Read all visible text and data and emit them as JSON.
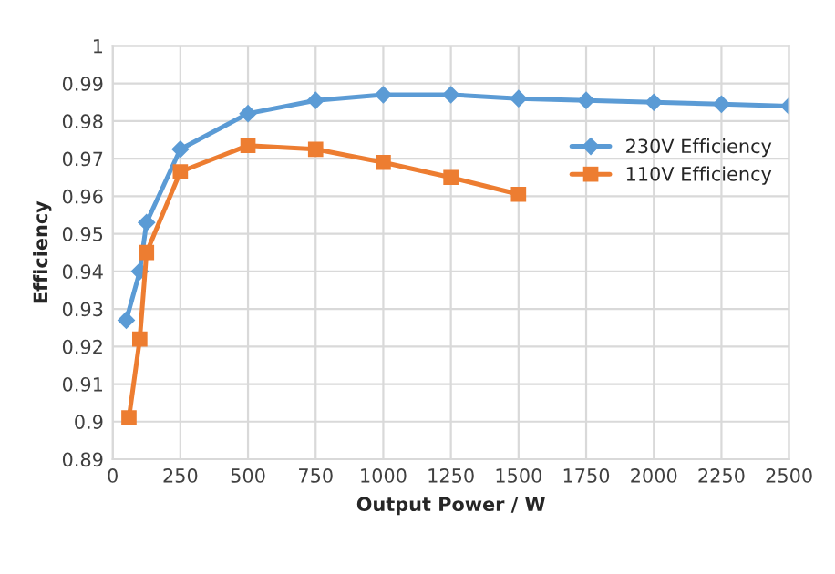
{
  "chart_data": {
    "type": "line",
    "xlabel": "Output Power / W",
    "ylabel": "Efficiency",
    "series": [
      {
        "name": "230V Efficiency",
        "color": "#5b9bd5",
        "marker": "diamond",
        "x": [
          50,
          100,
          125,
          250,
          500,
          750,
          1000,
          1250,
          1500,
          1750,
          2000,
          2250,
          2500
        ],
        "values": [
          0.927,
          0.94,
          0.953,
          0.9725,
          0.982,
          0.9855,
          0.987,
          0.987,
          0.986,
          0.9855,
          0.985,
          0.9845,
          0.984
        ]
      },
      {
        "name": "110V Efficiency",
        "color": "#ed7d31",
        "marker": "square",
        "x": [
          60,
          100,
          125,
          250,
          500,
          750,
          1000,
          1250,
          1500
        ],
        "values": [
          0.901,
          0.922,
          0.945,
          0.9665,
          0.9735,
          0.9725,
          0.969,
          0.965,
          0.9605
        ]
      }
    ],
    "xlim": [
      0,
      2500
    ],
    "xticks": [
      0,
      250,
      500,
      750,
      1000,
      1250,
      1500,
      1750,
      2000,
      2250,
      2500
    ],
    "ylim": [
      0.89,
      1
    ],
    "yticks": [
      0.89,
      0.9,
      0.91,
      0.92,
      0.93,
      0.94,
      0.95,
      0.96,
      0.97,
      0.98,
      0.99,
      1
    ],
    "grid": true,
    "legend": "right",
    "line_style": "solid"
  }
}
